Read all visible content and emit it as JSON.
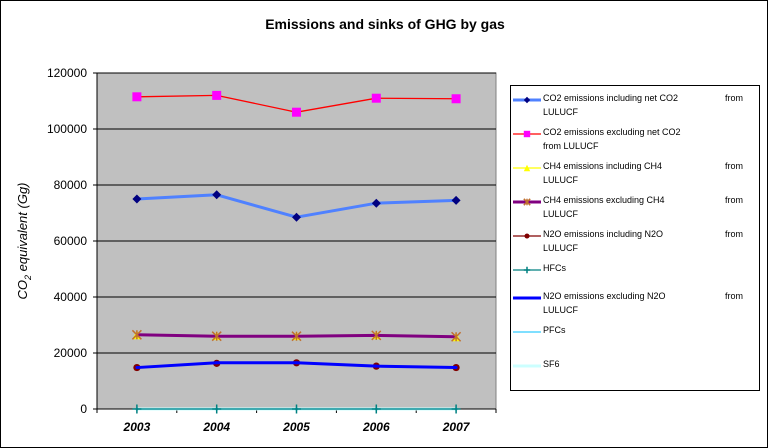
{
  "chart_data": {
    "type": "line",
    "title": "Emissions and sinks of GHG by gas",
    "xlabel": "",
    "ylabel": "CO2 equivalent (Gg)",
    "ylabel_main": "CO",
    "ylabel_sub": "2",
    "ylabel_rest": " equivalent  (Gg)",
    "categories": [
      "2003",
      "2004",
      "2005",
      "2006",
      "2007"
    ],
    "ylim": [
      0,
      120000
    ],
    "yticks": [
      0,
      20000,
      40000,
      60000,
      80000,
      100000,
      120000
    ],
    "ytick_labels": [
      "0",
      "20000",
      "40000",
      "60000",
      "80000",
      "100000",
      "120000"
    ],
    "grid": true,
    "plot_background": "#c0c0c0",
    "legend_position": "right",
    "series": [
      {
        "name": "CO2 emissions including net CO2",
        "name_line2": "LULUCF",
        "name_from": "from",
        "color": "#4f81ff",
        "marker": "diamond",
        "marker_color": "#000080",
        "width": 3,
        "values": [
          75000,
          76500,
          68500,
          73500,
          74500
        ]
      },
      {
        "name": "CO2 emissions excluding net CO2",
        "name_line2": "from LULUCF",
        "name_from": "",
        "color": "#ff0000",
        "marker": "square",
        "marker_color": "#ff00ff",
        "width": 1.3,
        "values": [
          111500,
          112000,
          106000,
          111000,
          110800
        ]
      },
      {
        "name": "CH4 emissions including CH4",
        "name_line2": "LULUCF",
        "name_from": "from",
        "color": "#ffff00",
        "marker": "triangle",
        "marker_color": "#ffff00",
        "width": 1.3,
        "values": [
          26500,
          26200,
          26200,
          26500,
          25800
        ]
      },
      {
        "name": "CH4 emissions excluding CH4",
        "name_line2": "LULUCF",
        "name_from": "from",
        "color": "#800080",
        "marker": "x",
        "marker_color": "#c07030",
        "width": 3,
        "values": [
          26500,
          26000,
          26000,
          26300,
          25800
        ]
      },
      {
        "name": "N2O emissions including N2O",
        "name_line2": "LULUCF",
        "name_from": "from",
        "color": "#800000",
        "marker": "circle",
        "marker_color": "#800000",
        "width": 1.3,
        "values": [
          14800,
          16300,
          16500,
          15300,
          14800
        ]
      },
      {
        "name": "HFCs",
        "name_line2": "",
        "name_from": "",
        "color": "#008080",
        "marker": "plus",
        "marker_color": "#008080",
        "width": 1.3,
        "values": [
          0,
          0,
          0,
          0,
          0
        ]
      },
      {
        "name": "N2O emissions excluding N2O",
        "name_line2": "LULUCF",
        "name_from": "from",
        "color": "#0000ff",
        "marker": "none",
        "marker_color": "#0000ff",
        "width": 3,
        "values": [
          14800,
          16500,
          16500,
          15300,
          14800
        ]
      },
      {
        "name": "PFCs",
        "name_line2": "",
        "name_from": "",
        "color": "#33ccff",
        "marker": "none",
        "marker_color": "#33ccff",
        "width": 1.3,
        "values": [
          0,
          0,
          0,
          0,
          0
        ]
      },
      {
        "name": "SF6",
        "name_line2": "",
        "name_from": "",
        "color": "#ccffff",
        "marker": "none",
        "marker_color": "#ccffff",
        "width": 3,
        "values": [
          0,
          0,
          0,
          0,
          0
        ]
      }
    ]
  }
}
